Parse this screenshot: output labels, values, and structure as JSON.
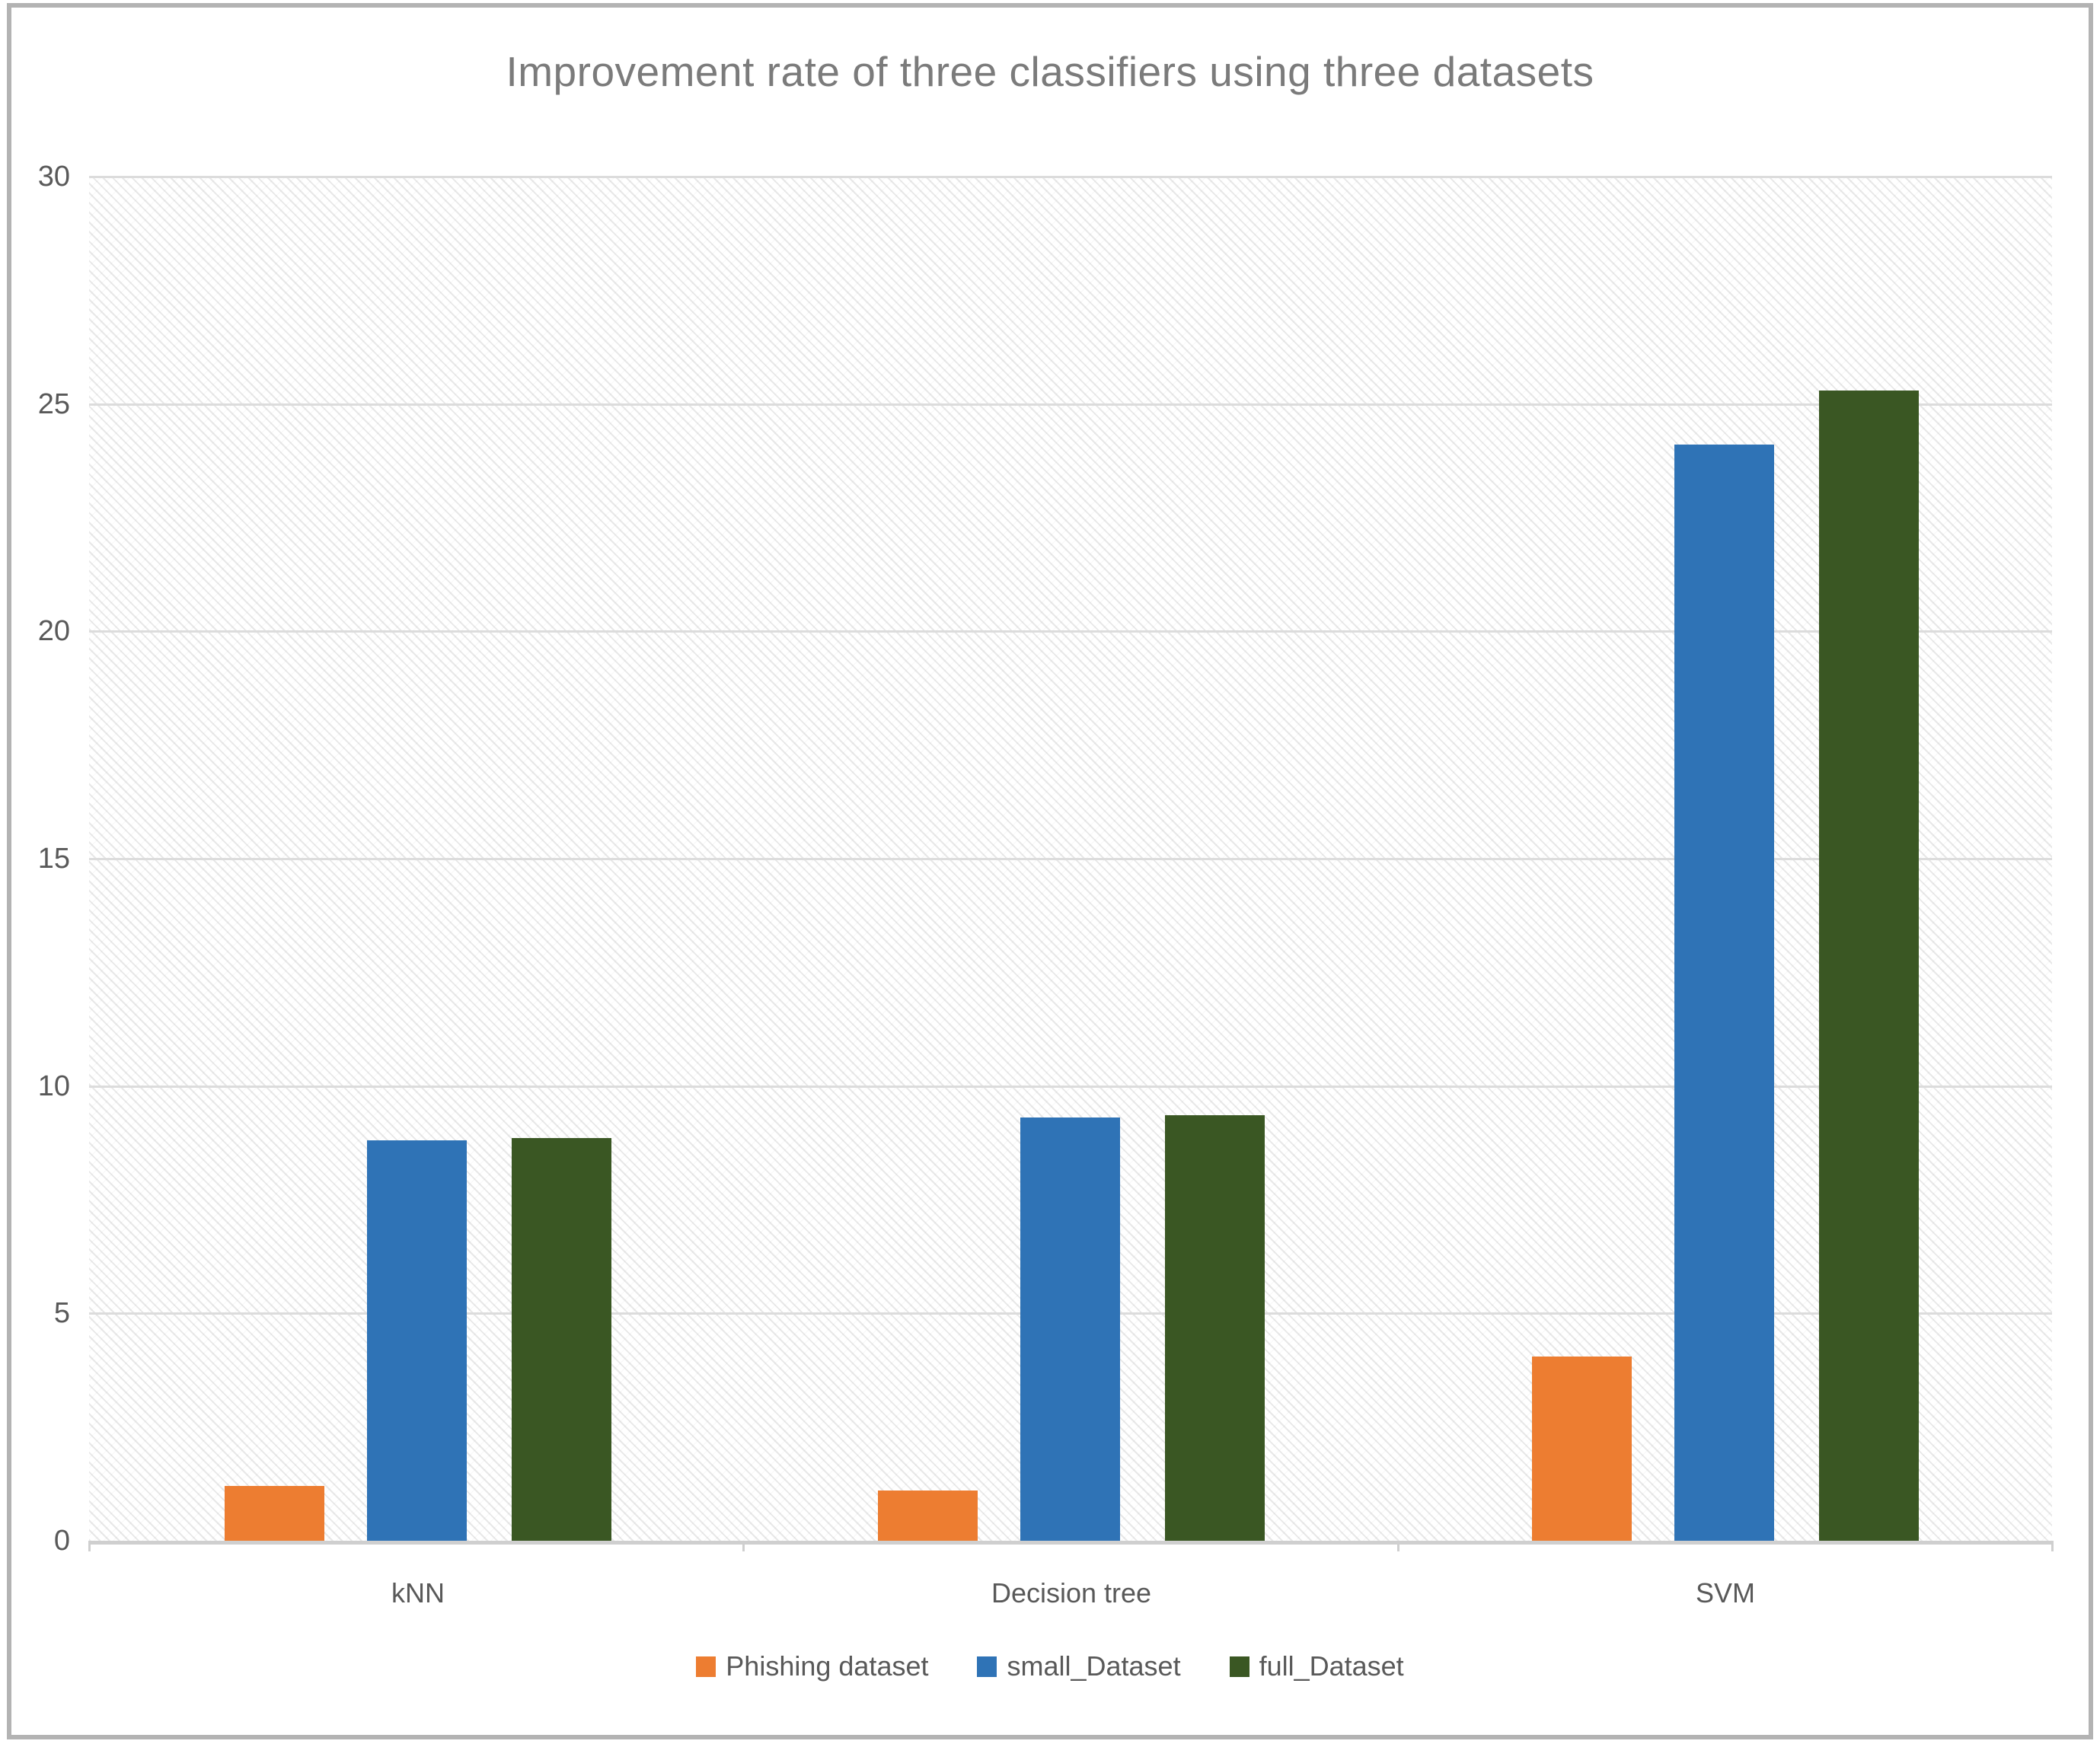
{
  "chart_data": {
    "type": "bar",
    "title": "Improvement rate of three classifiers using three datasets",
    "categories": [
      "kNN",
      "Decision tree",
      "SVM"
    ],
    "series": [
      {
        "name": "Phishing dataset",
        "color": "#ED7D31",
        "values": [
          1.2,
          1.1,
          4.05
        ]
      },
      {
        "name": "small_Dataset",
        "color": "#2F73B6",
        "values": [
          8.8,
          9.3,
          24.1
        ]
      },
      {
        "name": "full_Dataset",
        "color": "#3A5723",
        "values": [
          8.85,
          9.35,
          25.3
        ]
      }
    ],
    "xlabel": "",
    "ylabel": "",
    "ylim": [
      0,
      30
    ],
    "yticks": [
      0,
      5,
      10,
      15,
      20,
      25,
      30
    ],
    "grid": "horizontal",
    "legend_position": "bottom",
    "plot_background": "diagonal-dot-hatch"
  },
  "styles": {
    "title_color": "#7b7b7b",
    "axis_text_color": "#595959",
    "gridline_color": "#dcdcdc",
    "axis_line_color": "#cfcfcf",
    "frame_color": "#b3b3b3"
  }
}
